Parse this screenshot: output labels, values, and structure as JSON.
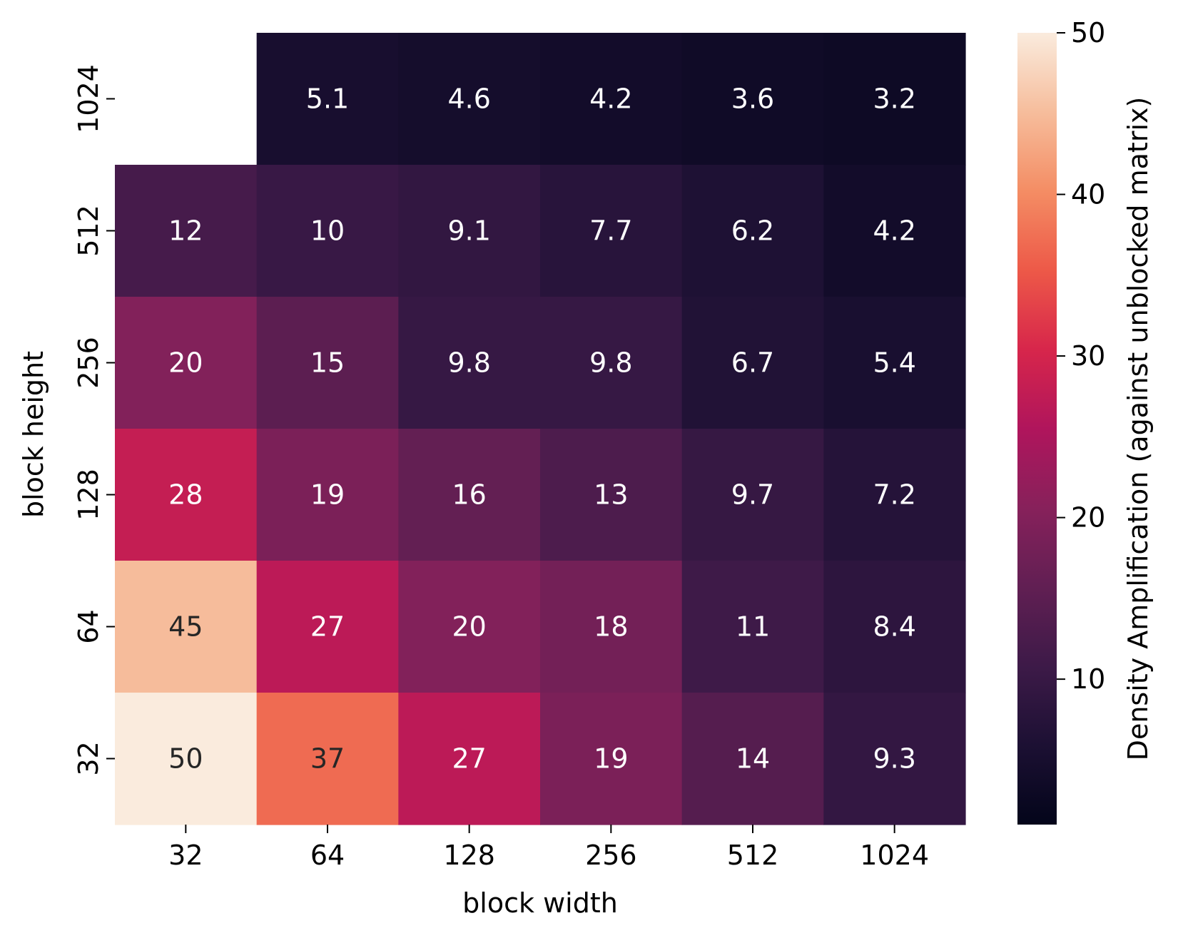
{
  "chart_data": {
    "type": "heatmap",
    "xlabel": "block width",
    "ylabel": "block height",
    "x_categories": [
      "32",
      "64",
      "128",
      "256",
      "512",
      "1024"
    ],
    "y_categories": [
      "1024",
      "512",
      "256",
      "128",
      "64",
      "32"
    ],
    "values": [
      [
        null,
        5.1,
        4.6,
        4.2,
        3.6,
        3.2
      ],
      [
        12,
        10,
        9.1,
        7.7,
        6.2,
        4.2
      ],
      [
        20,
        15,
        9.8,
        9.8,
        6.7,
        5.4
      ],
      [
        28,
        19,
        16,
        13,
        9.7,
        7.2
      ],
      [
        45,
        27,
        20,
        18,
        11,
        8.4
      ],
      [
        50,
        37,
        27,
        19,
        14,
        9.3
      ]
    ],
    "colorbar": {
      "label": "Density Amplification (against unblocked matrix)",
      "ticks": [
        "10",
        "20",
        "30",
        "40",
        "50"
      ],
      "min": 1,
      "max": 50,
      "colormap": "rocket"
    },
    "grid": false
  }
}
